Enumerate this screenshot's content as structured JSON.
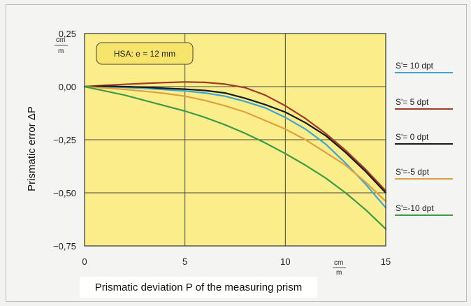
{
  "chart_data": {
    "type": "line",
    "title": "",
    "xlabel": "Prismatic deviation P of the measuring prism",
    "ylabel": "Prismatic error ΔP",
    "unit_label": {
      "numerator": "cm",
      "denominator": "m"
    },
    "xlim": [
      0,
      15
    ],
    "ylim": [
      -0.75,
      0.25
    ],
    "x_ticks": [
      0,
      5,
      10,
      15
    ],
    "x_tick_labels": [
      "0",
      "5",
      "10",
      "15"
    ],
    "y_ticks": [
      0.25,
      0.0,
      -0.25,
      -0.5,
      -0.75
    ],
    "y_tick_labels": [
      "0,25",
      "0,00",
      "−0,25",
      "−0,50",
      "−0,75"
    ],
    "grid": true,
    "background_color": "#fbee8a",
    "annotation": "HSA: e = 12 mm",
    "legend_position": "right",
    "x": [
      0,
      1,
      2,
      3,
      4,
      5,
      6,
      7,
      8,
      9,
      10,
      11,
      12,
      13,
      14,
      15
    ],
    "series": [
      {
        "name": "S'= 10 dpt",
        "color": "#3aa6d6",
        "values": [
          0.0,
          0.0,
          -0.004,
          -0.008,
          -0.014,
          -0.02,
          -0.03,
          -0.045,
          -0.07,
          -0.1,
          -0.145,
          -0.2,
          -0.27,
          -0.36,
          -0.46,
          -0.57
        ]
      },
      {
        "name": "S'= 5 dpt",
        "color": "#a33a2a",
        "values": [
          0.0,
          0.006,
          0.011,
          0.015,
          0.019,
          0.022,
          0.02,
          0.012,
          -0.005,
          -0.04,
          -0.09,
          -0.15,
          -0.22,
          -0.3,
          -0.39,
          -0.49
        ]
      },
      {
        "name": "S'= 0 dpt",
        "color": "#1a1a1a",
        "values": [
          0.0,
          0.002,
          0.0,
          -0.003,
          -0.008,
          -0.012,
          -0.018,
          -0.03,
          -0.055,
          -0.085,
          -0.12,
          -0.17,
          -0.23,
          -0.31,
          -0.4,
          -0.5
        ]
      },
      {
        "name": "S'=-5 dpt",
        "color": "#e0a040",
        "values": [
          0.0,
          -0.006,
          -0.013,
          -0.022,
          -0.032,
          -0.045,
          -0.065,
          -0.09,
          -0.12,
          -0.16,
          -0.2,
          -0.25,
          -0.31,
          -0.37,
          -0.45,
          -0.54
        ]
      },
      {
        "name": "S'=-10 dpt",
        "color": "#3c9a4a",
        "values": [
          0.0,
          -0.02,
          -0.04,
          -0.065,
          -0.09,
          -0.115,
          -0.145,
          -0.18,
          -0.22,
          -0.265,
          -0.315,
          -0.37,
          -0.43,
          -0.5,
          -0.58,
          -0.67
        ]
      }
    ]
  }
}
